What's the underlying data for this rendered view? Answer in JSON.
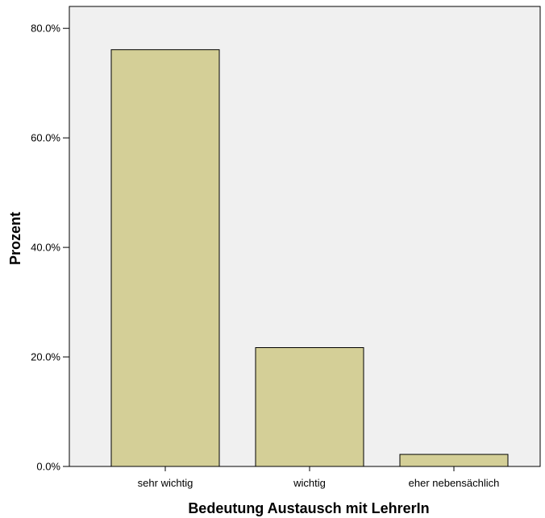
{
  "chart_data": {
    "type": "bar",
    "title": "",
    "xlabel": "Bedeutung Austausch mit LehrerIn",
    "ylabel": "Prozent",
    "categories": [
      "sehr wichtig",
      "wichtig",
      "eher nebensächlich"
    ],
    "values": [
      76.1,
      21.7,
      2.2
    ],
    "ylim": [
      0,
      84
    ],
    "yticks": [
      0,
      20,
      40,
      60,
      80
    ],
    "ytick_labels": [
      "0.0%",
      "20.0%",
      "40.0%",
      "60.0%",
      "80.0%"
    ],
    "grid": false,
    "colors": {
      "bar_fill": "#d4cf97",
      "bar_stroke": "#000000",
      "plot_background": "#f0f0f0",
      "axis": "#000000"
    }
  }
}
